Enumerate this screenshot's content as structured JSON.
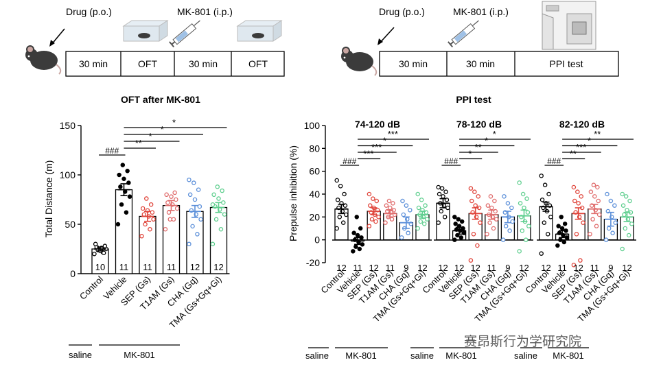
{
  "timeline_left": {
    "drug_label": "Drug (p.o.)",
    "mk_label": "MK-801 (i.p.)",
    "boxes": [
      "30 min",
      "OFT",
      "30 min",
      "OFT"
    ]
  },
  "timeline_right": {
    "drug_label": "Drug (p.o.)",
    "mk_label": "MK-801 (i.p.)",
    "boxes": [
      "30 min",
      "30 min",
      "PPI test"
    ]
  },
  "groups": [
    "Control",
    "Vehicle",
    "SEP (Gs)",
    "T1AM (Gs)",
    "CHA (Gq)",
    "TMA (Gs+Gq+Gi)"
  ],
  "colors": {
    "Control": "#000000",
    "Vehicle": "#000000",
    "SEP": "#e0443a",
    "T1AM": "#e06c6c",
    "CHA": "#5b8fd9",
    "TMA": "#5fcf8f"
  },
  "footer": {
    "saline": "saline",
    "mk801": "MK-801"
  },
  "watermark": "赛昂斯行为学研究院",
  "chart_data": [
    {
      "type": "bar",
      "title": "OFT after MK-801",
      "ylabel": "Total Distance (m)",
      "ylim": [
        0,
        150
      ],
      "yticks": [
        0,
        50,
        100,
        150
      ],
      "categories": [
        "Control",
        "Vehicle",
        "SEP (Gs)",
        "T1AM (Gs)",
        "CHA (Gq)",
        "TMA (Gs+Gq+Gi)"
      ],
      "values": [
        25,
        85,
        58,
        69,
        63,
        67
      ],
      "errors": [
        2,
        6,
        5,
        5,
        6,
        5
      ],
      "n": [
        10,
        11,
        11,
        11,
        12,
        12
      ],
      "points": [
        [
          20,
          22,
          24,
          25,
          26,
          27,
          28,
          23,
          30,
          21
        ],
        [
          50,
          62,
          70,
          78,
          83,
          88,
          92,
          96,
          100,
          104,
          110
        ],
        [
          38,
          45,
          50,
          55,
          58,
          60,
          62,
          64,
          66,
          70,
          76
        ],
        [
          45,
          55,
          62,
          66,
          70,
          72,
          75,
          78,
          80,
          82,
          55
        ],
        [
          30,
          40,
          48,
          55,
          60,
          64,
          68,
          75,
          80,
          85,
          92,
          95
        ],
        [
          30,
          45,
          55,
          60,
          65,
          68,
          72,
          76,
          80,
          84,
          88,
          70
        ]
      ],
      "sig_ref": [
        {
          "from": 0,
          "to": 1,
          "label": "###"
        }
      ],
      "sig_brackets": [
        {
          "from": 1,
          "to": 2,
          "label": "**"
        },
        {
          "from": 1,
          "to": 3,
          "label": "*"
        },
        {
          "from": 1,
          "to": 4,
          "label": "*"
        },
        {
          "from": 1,
          "to": 5,
          "label": "*"
        }
      ]
    },
    {
      "type": "bar",
      "title": "PPI test",
      "ylabel": "Prepulse inhibition (%)",
      "ylim": [
        -20,
        100
      ],
      "yticks": [
        -20,
        0,
        20,
        40,
        60,
        80,
        100
      ],
      "panels": [
        {
          "subtitle": "74-120 dB",
          "categories": [
            "Control",
            "Vehicle",
            "SEP (Gs)",
            "T1AM (Gs)",
            "CHA (Gq)",
            "TMA (Gs+Gq+Gi)"
          ],
          "values": [
            27,
            -1,
            25,
            23,
            15,
            22
          ],
          "errors": [
            4,
            3,
            3,
            3,
            5,
            3
          ],
          "n": [
            12,
            11,
            12,
            11,
            9,
            12
          ],
          "points": [
            [
              10,
              15,
              20,
              22,
              25,
              28,
              30,
              32,
              35,
              40,
              47,
              52
            ],
            [
              -10,
              -8,
              -6,
              -4,
              -2,
              0,
              2,
              4,
              6,
              10,
              20
            ],
            [
              12,
              16,
              18,
              20,
              22,
              24,
              26,
              28,
              30,
              34,
              36,
              40
            ],
            [
              15,
              18,
              20,
              22,
              24,
              25,
              26,
              28,
              30,
              32,
              34
            ],
            [
              2,
              6,
              10,
              14,
              18,
              22,
              26,
              30,
              34
            ],
            [
              10,
              14,
              16,
              18,
              20,
              22,
              24,
              26,
              28,
              30,
              35,
              40
            ]
          ],
          "sig_ref": [
            {
              "from": 0,
              "to": 1,
              "label": "###"
            }
          ],
          "sig_brackets": [
            {
              "from": 1,
              "to": 2,
              "label": "***"
            },
            {
              "from": 1,
              "to": 3,
              "label": "***"
            },
            {
              "from": 1,
              "to": 4,
              "label": "*"
            },
            {
              "from": 1,
              "to": 5,
              "label": "***"
            }
          ]
        },
        {
          "subtitle": "78-120 dB",
          "categories": [
            "Control",
            "Vehicle",
            "SEP (Gs)",
            "T1AM (Gs)",
            "CHA (Gq)",
            "TMA (Gs+Gq+Gi)"
          ],
          "values": [
            32,
            8,
            23,
            22,
            20,
            21
          ],
          "errors": [
            4,
            3,
            5,
            4,
            5,
            5
          ],
          "n": [
            12,
            12,
            12,
            11,
            9,
            12
          ],
          "points": [
            [
              15,
              20,
              25,
              28,
              30,
              32,
              35,
              38,
              40,
              42,
              45,
              46
            ],
            [
              0,
              2,
              4,
              6,
              8,
              9,
              10,
              12,
              14,
              16,
              18,
              20
            ],
            [
              -18,
              -5,
              5,
              15,
              20,
              24,
              28,
              30,
              34,
              38,
              42,
              45
            ],
            [
              5,
              10,
              15,
              18,
              20,
              22,
              25,
              28,
              30,
              34,
              38
            ],
            [
              0,
              8,
              12,
              16,
              20,
              24,
              28,
              32,
              38
            ],
            [
              -10,
              0,
              8,
              12,
              16,
              20,
              24,
              28,
              32,
              36,
              40,
              50
            ]
          ],
          "sig_ref": [
            {
              "from": 0,
              "to": 1,
              "label": "###"
            }
          ],
          "sig_brackets": [
            {
              "from": 1,
              "to": 2,
              "label": "*"
            },
            {
              "from": 1,
              "to": 3,
              "label": "**"
            },
            {
              "from": 1,
              "to": 4,
              "label": "*"
            },
            {
              "from": 1,
              "to": 5,
              "label": "*"
            }
          ]
        },
        {
          "subtitle": "82-120 dB",
          "categories": [
            "Control",
            "Vehicle",
            "SEP (Gs)",
            "T1AM (Gs)",
            "CHA (Gq)",
            "TMA (Gs+Gq+Gi)"
          ],
          "values": [
            29,
            5,
            23,
            27,
            18,
            20
          ],
          "errors": [
            4,
            3,
            5,
            4,
            6,
            4
          ],
          "n": [
            12,
            11,
            12,
            11,
            9,
            12
          ],
          "points": [
            [
              -12,
              5,
              15,
              20,
              25,
              28,
              30,
              32,
              35,
              40,
              48,
              56
            ],
            [
              -5,
              -2,
              0,
              2,
              4,
              6,
              8,
              10,
              12,
              14,
              20
            ],
            [
              -22,
              -18,
              5,
              15,
              20,
              24,
              28,
              32,
              34,
              38,
              42,
              46
            ],
            [
              5,
              12,
              18,
              22,
              26,
              30,
              34,
              38,
              42,
              46,
              48
            ],
            [
              0,
              6,
              10,
              15,
              20,
              25,
              30,
              34,
              40
            ],
            [
              -8,
              4,
              10,
              14,
              18,
              22,
              24,
              26,
              30,
              34,
              38,
              40
            ]
          ],
          "sig_ref": [
            {
              "from": 0,
              "to": 1,
              "label": "###"
            }
          ],
          "sig_brackets": [
            {
              "from": 1,
              "to": 2,
              "label": "**"
            },
            {
              "from": 1,
              "to": 3,
              "label": "***"
            },
            {
              "from": 1,
              "to": 4,
              "label": "*"
            },
            {
              "from": 1,
              "to": 5,
              "label": "**"
            }
          ]
        }
      ]
    }
  ]
}
